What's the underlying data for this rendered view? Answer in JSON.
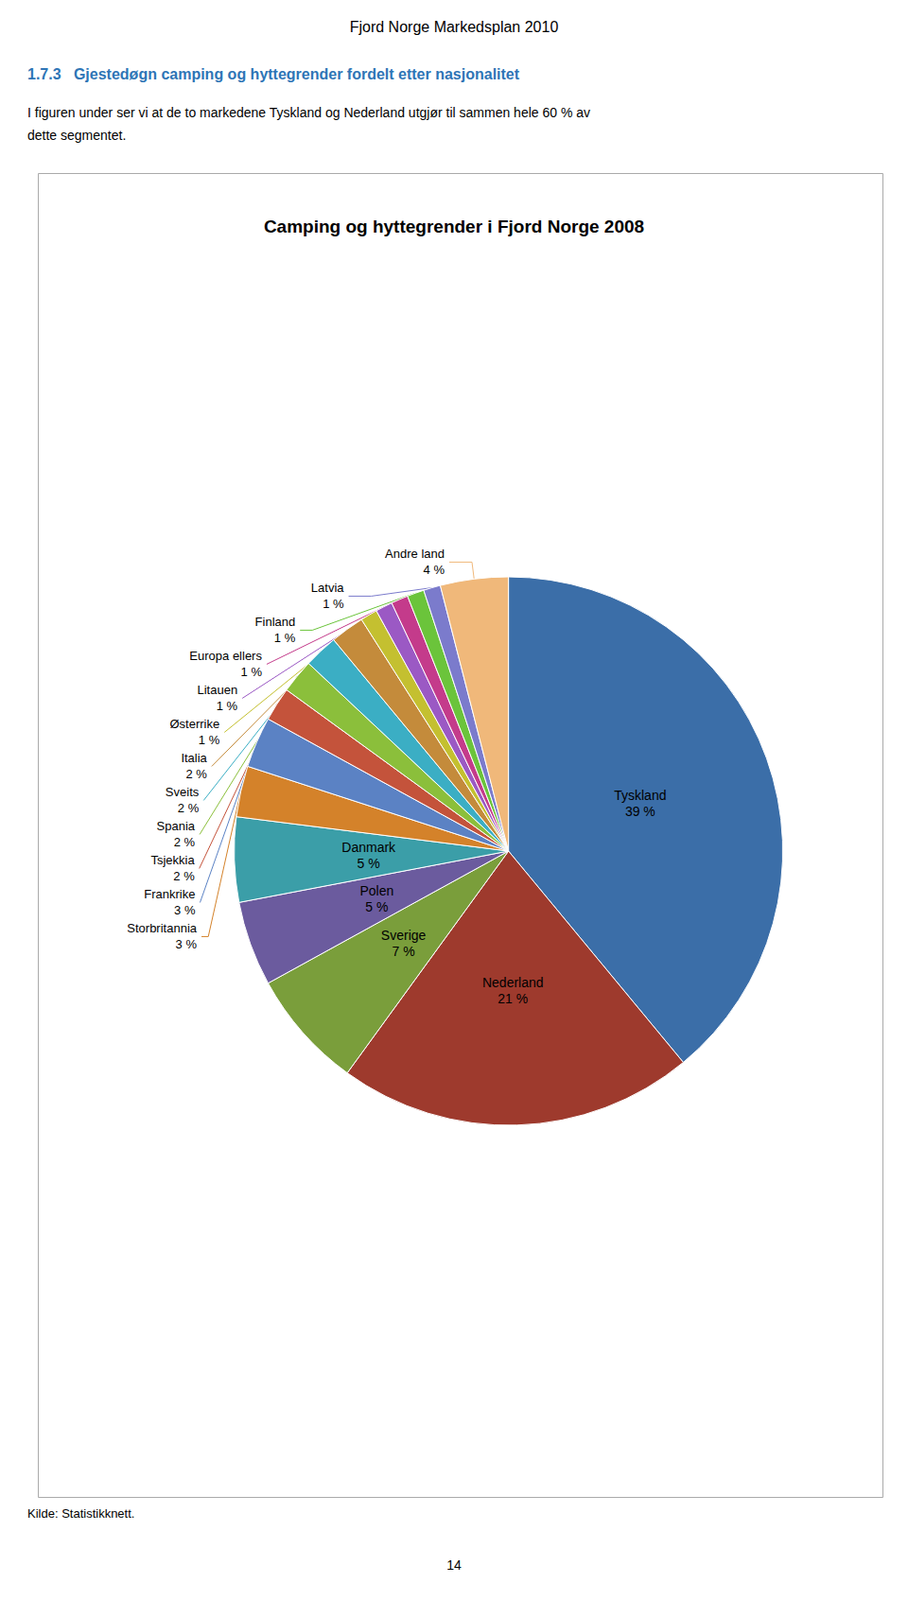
{
  "chart_data": {
    "type": "pie",
    "title": "Camping og hyttegrender i Fjord Norge 2008",
    "annotations": [
      "Fjord Norge Markedsplan 2010",
      "1.7.3   Gjestedøgn camping og hyttegrender fordelt etter nasjonalitet",
      "I figuren under ser vi at de to markedene Tyskland og Nederland utgjør til sammen hele 60 % av",
      "dette segmentet.",
      "Kilde: Statistikknett.",
      "14"
    ],
    "categories": [
      "Tyskland",
      "Nederland",
      "Sverige",
      "Polen",
      "Danmark",
      "Storbritannia",
      "Frankrike",
      "Tsjekkia",
      "Spania",
      "Sveits",
      "Italia",
      "Østerrike",
      "Litauen",
      "Europa ellers",
      "Finland",
      "Latvia",
      "Andre land"
    ],
    "values": [
      39,
      21,
      7,
      5,
      5,
      3,
      3,
      2,
      2,
      2,
      2,
      1,
      1,
      1,
      1,
      1,
      4
    ],
    "value_labels": [
      "39 %",
      "21 %",
      "7 %",
      "5 %",
      "5 %",
      "3 %",
      "3 %",
      "2 %",
      "2 %",
      "2 %",
      "2 %",
      "1 %",
      "1 %",
      "1 %",
      "1 %",
      "1 %",
      "4 %"
    ],
    "colors": [
      "#3B6EA8",
      "#9E3A2D",
      "#7A9E3B",
      "#6B5B9E",
      "#3B9EA8",
      "#D4822A",
      "#5B82C4",
      "#C4533B",
      "#8BBF3B",
      "#3BAEC4",
      "#C48B3B",
      "#C4C030",
      "#9B59C4",
      "#C43B8B",
      "#6BC43B",
      "#7B7BCC",
      "#F0B87A"
    ],
    "data_labels": true
  }
}
